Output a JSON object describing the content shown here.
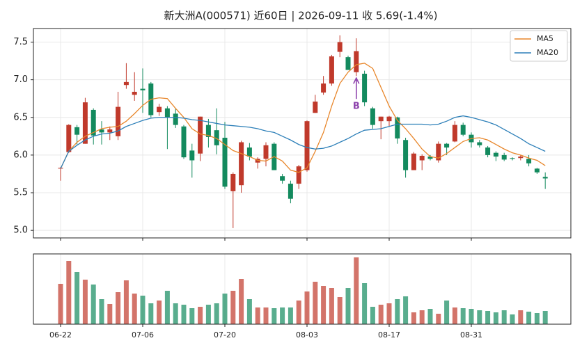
{
  "chart_data": {
    "type": "candlestick",
    "title": "新大洲A(000571) 近60日  |  2026-09-11 收 5.69(-1.4%)",
    "categories": [
      "06-22",
      "06-23",
      "06-24",
      "06-25",
      "06-26",
      "06-29",
      "06-30",
      "07-01",
      "07-02",
      "07-03",
      "07-06",
      "07-07",
      "07-08",
      "07-09",
      "07-10",
      "07-13",
      "07-14",
      "07-15",
      "07-16",
      "07-17",
      "07-20",
      "07-21",
      "07-22",
      "07-23",
      "07-24",
      "07-27",
      "07-28",
      "07-29",
      "07-30",
      "07-31",
      "08-03",
      "08-04",
      "08-05",
      "08-06",
      "08-07",
      "08-10",
      "08-11",
      "08-12",
      "08-13",
      "08-14",
      "08-17",
      "08-18",
      "08-19",
      "08-20",
      "08-21",
      "08-24",
      "08-25",
      "08-26",
      "08-27",
      "08-28",
      "08-31",
      "09-01",
      "09-02",
      "09-03",
      "09-04",
      "09-07",
      "09-08",
      "09-09",
      "09-10",
      "09-11"
    ],
    "open": [
      5.82,
      6.04,
      6.37,
      6.15,
      6.6,
      6.34,
      6.3,
      6.25,
      6.93,
      6.8,
      6.88,
      6.95,
      6.57,
      6.62,
      6.55,
      6.38,
      6.06,
      6.02,
      6.4,
      6.33,
      6.23,
      5.52,
      5.6,
      6.1,
      5.9,
      5.95,
      6.15,
      5.72,
      5.62,
      5.62,
      5.8,
      6.56,
      6.83,
      6.95,
      7.37,
      7.3,
      7.1,
      7.08,
      6.62,
      6.45,
      6.45,
      6.5,
      6.2,
      5.8,
      5.93,
      5.98,
      5.93,
      6.15,
      6.18,
      6.4,
      6.27,
      6.17,
      6.1,
      6.03,
      6.0,
      5.96,
      5.96,
      5.95,
      5.82,
      5.71
    ],
    "high": [
      5.84,
      6.41,
      6.4,
      6.76,
      6.62,
      6.45,
      6.38,
      6.84,
      7.22,
      7.1,
      7.15,
      6.97,
      6.68,
      6.65,
      6.62,
      6.4,
      6.15,
      6.51,
      6.48,
      6.62,
      6.44,
      5.77,
      6.19,
      6.16,
      5.97,
      6.17,
      6.17,
      5.75,
      5.66,
      5.87,
      6.46,
      6.8,
      7.05,
      7.33,
      7.59,
      7.32,
      7.55,
      7.12,
      6.64,
      6.51,
      6.52,
      6.51,
      6.23,
      6.04,
      6.01,
      6.0,
      6.18,
      6.16,
      6.45,
      6.43,
      6.3,
      6.2,
      6.12,
      6.05,
      6.03,
      5.97,
      6.0,
      6.0,
      5.83,
      5.77
    ],
    "low": [
      5.66,
      6.03,
      6.14,
      6.15,
      6.14,
      6.14,
      6.2,
      6.2,
      6.88,
      6.72,
      6.56,
      6.5,
      6.52,
      6.08,
      6.36,
      5.95,
      5.7,
      5.92,
      6.1,
      6.01,
      5.55,
      5.03,
      5.5,
      5.93,
      5.82,
      5.85,
      5.8,
      5.62,
      5.36,
      5.55,
      5.78,
      6.56,
      6.8,
      6.92,
      7.3,
      7.13,
      7.05,
      6.65,
      6.35,
      6.21,
      6.38,
      6.15,
      5.7,
      5.8,
      5.8,
      5.93,
      5.9,
      6.0,
      6.17,
      6.25,
      6.1,
      6.1,
      5.97,
      5.92,
      5.92,
      5.93,
      5.93,
      5.85,
      5.75,
      5.55
    ],
    "close": [
      5.83,
      6.4,
      6.27,
      6.7,
      6.26,
      6.3,
      6.34,
      6.64,
      6.97,
      6.84,
      6.86,
      6.53,
      6.64,
      6.5,
      6.4,
      5.97,
      5.93,
      6.51,
      6.24,
      6.13,
      5.58,
      5.75,
      6.17,
      5.98,
      5.95,
      6.13,
      5.8,
      5.66,
      5.42,
      5.85,
      6.45,
      6.71,
      6.95,
      7.31,
      7.5,
      7.13,
      7.38,
      6.7,
      6.4,
      6.51,
      6.51,
      6.22,
      5.8,
      6.02,
      5.99,
      5.95,
      6.15,
      6.1,
      6.4,
      6.27,
      6.17,
      6.13,
      6.0,
      5.98,
      5.94,
      5.95,
      5.98,
      5.89,
      5.77,
      5.69
    ],
    "volume": [
      58,
      91,
      75,
      64,
      57,
      36,
      29,
      46,
      63,
      44,
      41,
      30,
      34,
      48,
      30,
      28,
      23,
      25,
      28,
      30,
      44,
      48,
      65,
      36,
      24,
      24,
      23,
      24,
      24,
      34,
      47,
      61,
      55,
      52,
      39,
      52,
      96,
      59,
      25,
      28,
      30,
      36,
      40,
      17,
      20,
      22,
      15,
      34,
      24,
      23,
      22,
      20,
      19,
      17,
      20,
      14,
      20,
      18,
      16,
      19
    ],
    "up_color": "#c0392b",
    "down_color": "#138a5e",
    "series": [
      {
        "name": "MA5",
        "color": "#e8862a",
        "values": [
          5.82,
          6.05,
          6.17,
          6.25,
          6.3,
          6.35,
          6.37,
          6.38,
          6.45,
          6.55,
          6.66,
          6.74,
          6.76,
          6.75,
          6.62,
          6.5,
          6.35,
          6.28,
          6.26,
          6.22,
          6.14,
          6.06,
          6.02,
          5.98,
          5.93,
          5.92,
          5.98,
          5.92,
          5.8,
          5.77,
          5.83,
          6.05,
          6.3,
          6.65,
          6.95,
          7.1,
          7.2,
          7.22,
          7.15,
          6.9,
          6.65,
          6.46,
          6.35,
          6.22,
          6.08,
          5.98,
          5.96,
          6.02,
          6.1,
          6.18,
          6.22,
          6.23,
          6.2,
          6.14,
          6.08,
          6.03,
          6.0,
          5.96,
          5.93,
          5.86
        ]
      },
      {
        "name": "MA20",
        "color": "#2c7fb8",
        "values": [
          5.82,
          6.05,
          6.13,
          6.2,
          6.25,
          6.28,
          6.29,
          6.32,
          6.38,
          6.42,
          6.46,
          6.49,
          6.5,
          6.5,
          6.5,
          6.49,
          6.47,
          6.46,
          6.44,
          6.42,
          6.4,
          6.39,
          6.38,
          6.37,
          6.35,
          6.32,
          6.3,
          6.25,
          6.2,
          6.14,
          6.1,
          6.08,
          6.09,
          6.12,
          6.17,
          6.22,
          6.28,
          6.33,
          6.34,
          6.35,
          6.38,
          6.41,
          6.41,
          6.41,
          6.41,
          6.4,
          6.41,
          6.45,
          6.5,
          6.52,
          6.5,
          6.47,
          6.44,
          6.4,
          6.34,
          6.28,
          6.22,
          6.15,
          6.1,
          6.05
        ]
      }
    ],
    "annotations": [
      {
        "text": "B",
        "category": "08-11",
        "color": "#8e44ad"
      }
    ],
    "ylim": [
      4.9,
      7.68
    ],
    "yticks": [
      {
        "value": 5,
        "label": "5.0"
      },
      5.5,
      {
        "value": 6,
        "label": "6.0"
      },
      6.5,
      {
        "value": 7,
        "label": "7.0"
      },
      7.5
    ],
    "volume_ylim": [
      0,
      101
    ],
    "grid": true,
    "legend": "upper right"
  }
}
